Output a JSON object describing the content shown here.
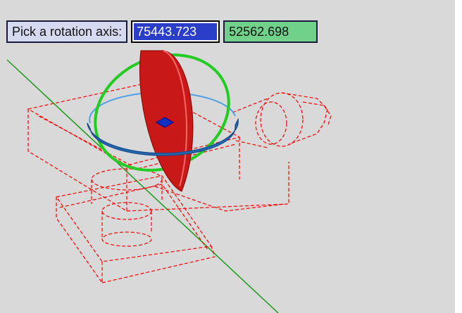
{
  "prompt": {
    "label": "Pick a rotation axis:",
    "x_value": "75443.723",
    "y_value": "52562.698"
  },
  "colors": {
    "background": "#d9d9d9",
    "wireframe": "#ff0000",
    "axis_line": "#1a9a1a",
    "gizmo_red": "#cc1010",
    "gizmo_green": "#22cc22",
    "gizmo_blue": "#2f7fd0",
    "center_marker": "#1030c0"
  },
  "icons": [
    "rotate-gizmo-icon",
    "center-grip-icon"
  ]
}
